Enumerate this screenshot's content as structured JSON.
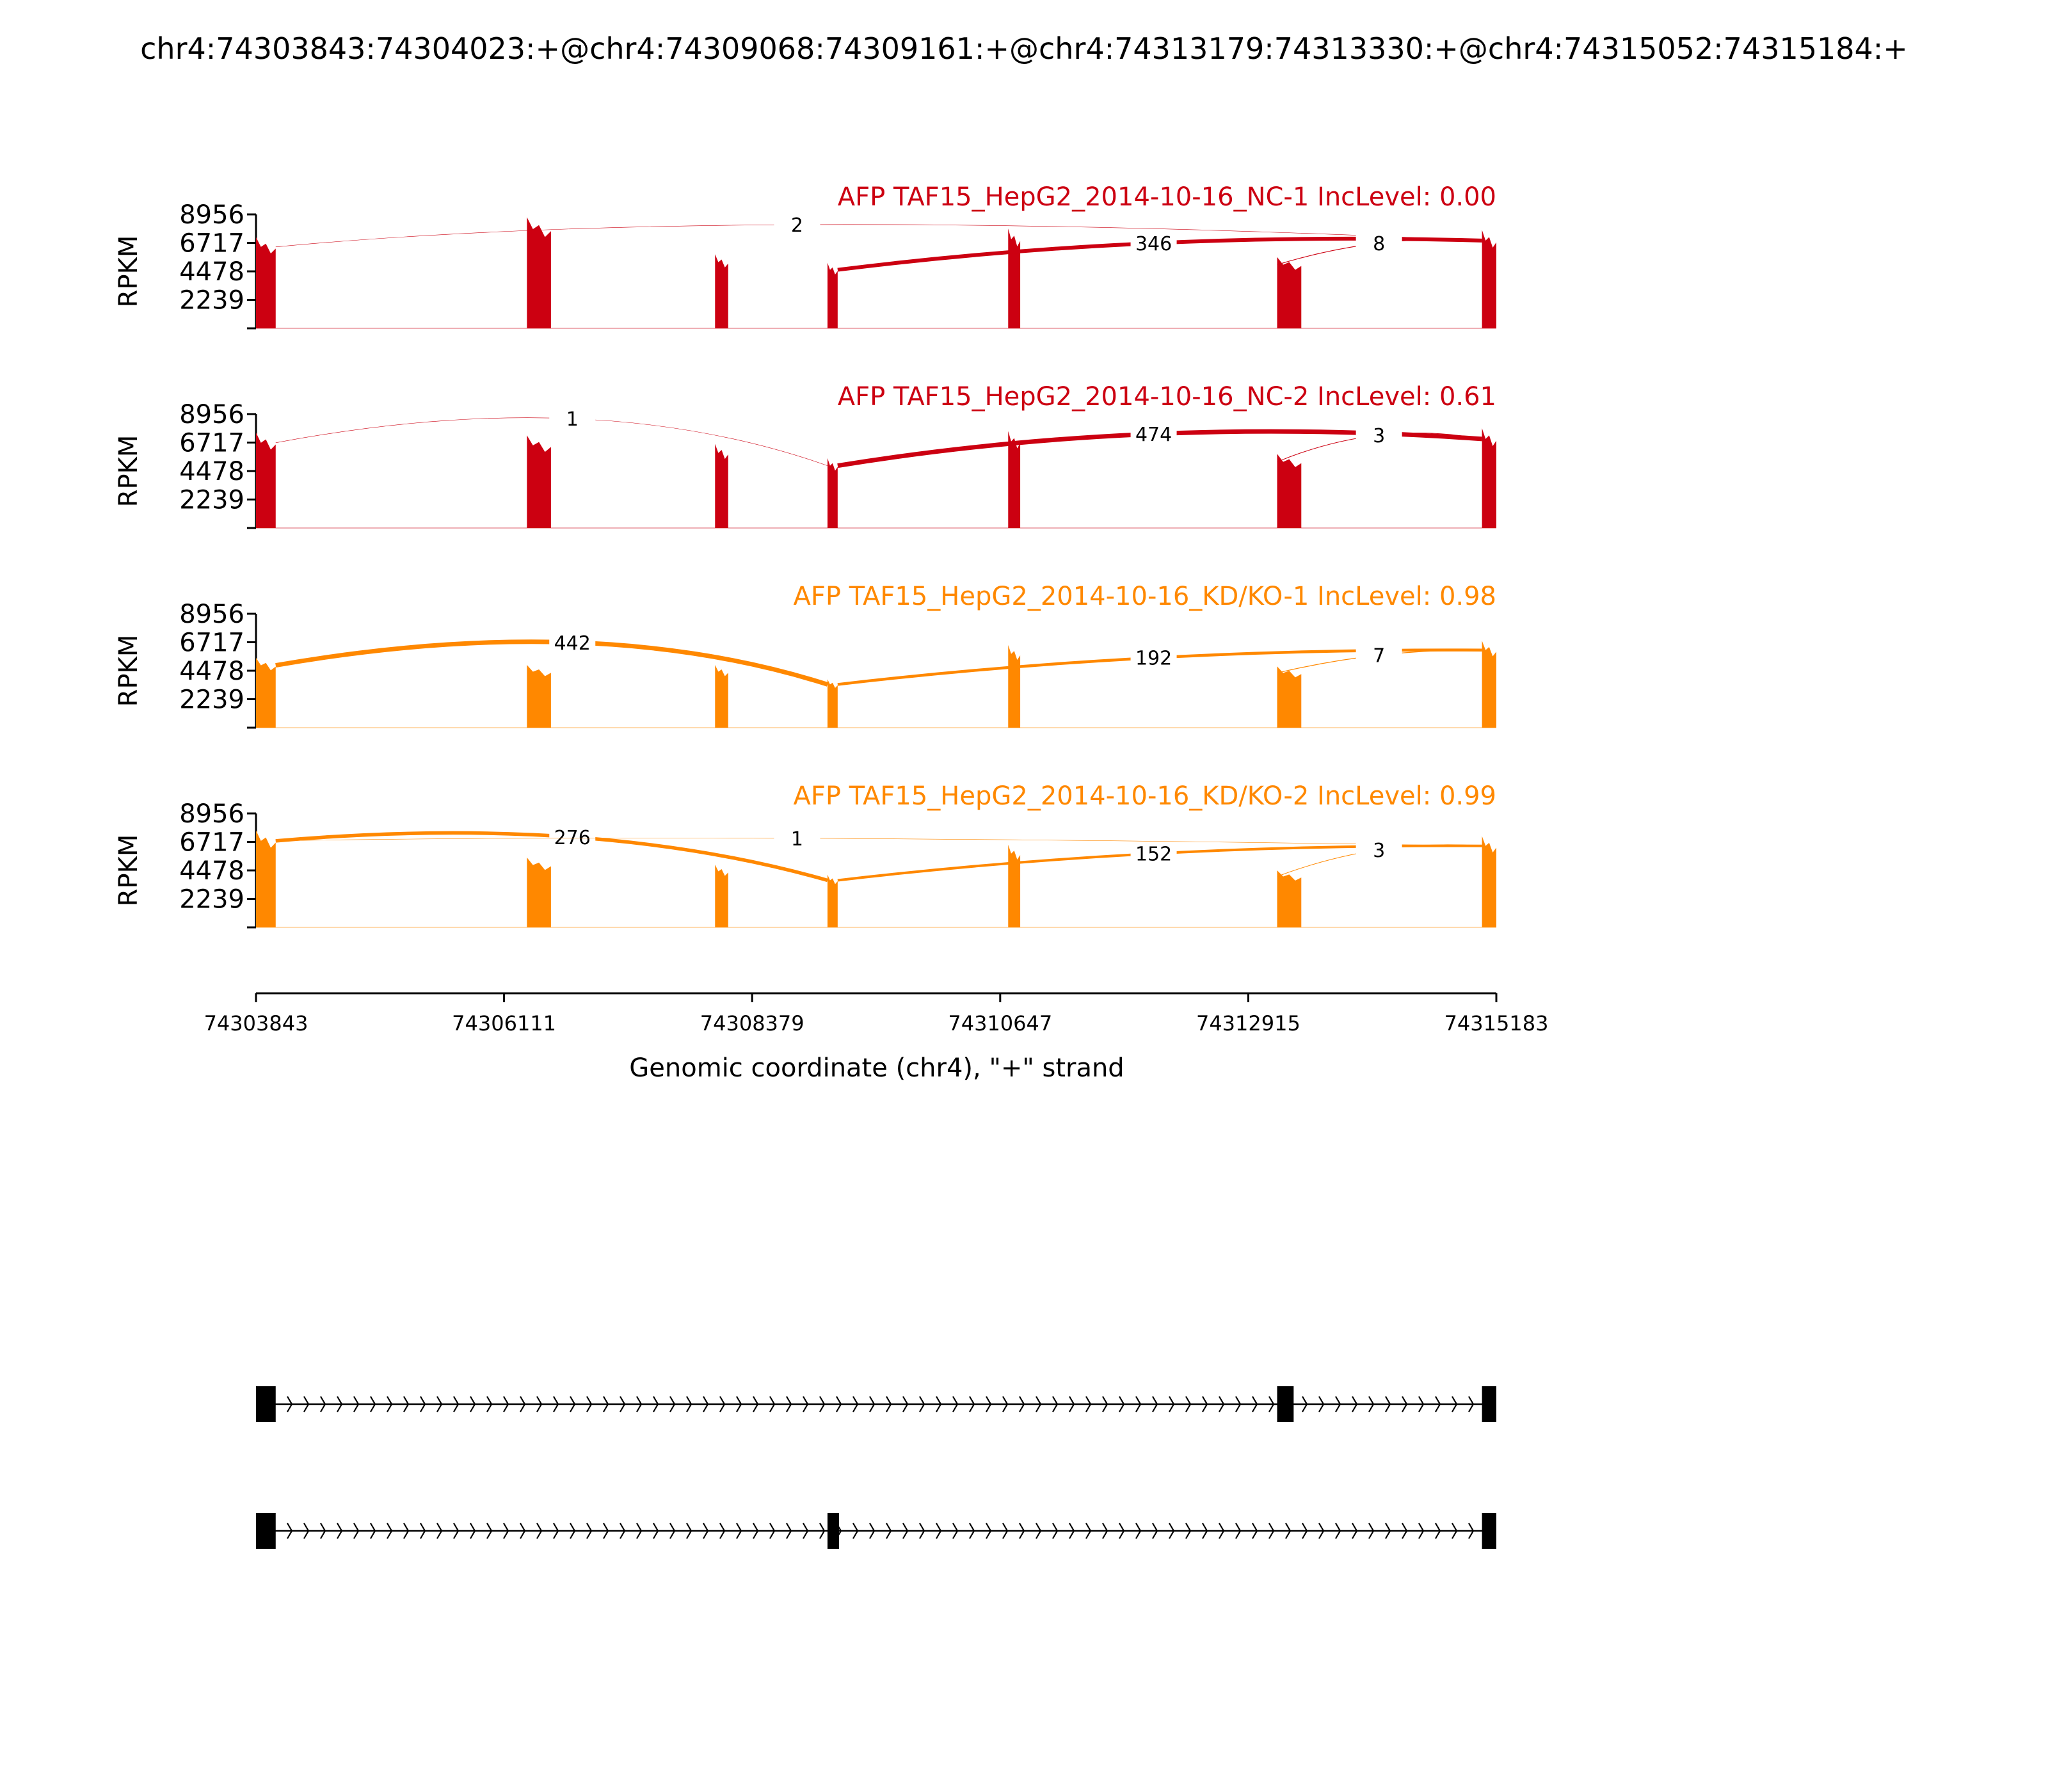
{
  "chart_data": {
    "type": "area",
    "subtype": "sashimi",
    "title": "chr4:74303843:74304023:+@chr4:74309068:74309161:+@chr4:74313179:74313330:+@chr4:74315052:74315184:+",
    "ylabel": "RPKM",
    "xlabel": "Genomic coordinate (chr4), \"+\" strand",
    "xlim": [
      74303843,
      74315183
    ],
    "ylim": [
      0,
      8956
    ],
    "x_ticks": [
      "74303843",
      "74306111",
      "74308379",
      "74310647",
      "74312915",
      "74315183"
    ],
    "y_ticks": [
      "8956",
      "6717",
      "4478",
      "2239"
    ],
    "exons": [
      {
        "start": 74303843,
        "end": 74304023
      },
      {
        "start": 74306320,
        "end": 74306540
      },
      {
        "start": 74308040,
        "end": 74308160
      },
      {
        "start": 74309068,
        "end": 74309161
      },
      {
        "start": 74310720,
        "end": 74310830
      },
      {
        "start": 74313179,
        "end": 74313400
      },
      {
        "start": 74315052,
        "end": 74315183
      }
    ],
    "panels": [
      {
        "label": "AFP TAF15_HepG2_2014-10-16_NC-1 IncLevel: 0.00",
        "color": "#cc0011",
        "coverage": [
          6400,
          7800,
          5200,
          4600,
          7000,
          5000,
          6900
        ],
        "junctions": [
          {
            "start": 74304023,
            "end": 74315052,
            "count": "2",
            "label_x": 74308790,
            "label_y": 8150,
            "width": 0.6
          },
          {
            "start": 74309161,
            "end": 74315052,
            "count": "346",
            "label_x": 74312050,
            "label_y": 6700,
            "width": 6
          },
          {
            "start": 74313179,
            "end": 74315052,
            "count": "8",
            "label_x": 74314110,
            "label_y": 6700,
            "width": 1.2
          }
        ]
      },
      {
        "label": "AFP TAF15_HepG2_2014-10-16_NC-2 IncLevel: 0.61",
        "color": "#cc0011",
        "coverage": [
          6700,
          6500,
          5900,
          4900,
          6800,
          5200,
          7000
        ],
        "junctions": [
          {
            "start": 74304023,
            "end": 74309068,
            "count": "1",
            "label_x": 74306735,
            "label_y": 8600,
            "width": 0.6
          },
          {
            "start": 74309161,
            "end": 74315052,
            "count": "474",
            "label_x": 74312050,
            "label_y": 7400,
            "width": 7
          },
          {
            "start": 74313179,
            "end": 74315052,
            "count": "3",
            "label_x": 74314110,
            "label_y": 7300,
            "width": 1
          }
        ]
      },
      {
        "label": "AFP TAF15_HepG2_2014-10-16_KD/KO-1 IncLevel: 0.98",
        "color": "#ff8800",
        "coverage": [
          4900,
          4400,
          4400,
          3400,
          5800,
          4300,
          6100
        ],
        "junctions": [
          {
            "start": 74304023,
            "end": 74309068,
            "count": "442",
            "label_x": 74306735,
            "label_y": 6700,
            "width": 7
          },
          {
            "start": 74309161,
            "end": 74315052,
            "count": "192",
            "label_x": 74312050,
            "label_y": 5500,
            "width": 4.5
          },
          {
            "start": 74313179,
            "end": 74315052,
            "count": "7",
            "label_x": 74314110,
            "label_y": 5700,
            "width": 1.2
          }
        ]
      },
      {
        "label": "AFP TAF15_HepG2_2014-10-16_KD/KO-2 IncLevel: 0.99",
        "color": "#ff8800",
        "coverage": [
          6800,
          4900,
          4400,
          3700,
          5800,
          4000,
          6400
        ],
        "junctions": [
          {
            "start": 74304023,
            "end": 74309068,
            "count": "276",
            "label_x": 74306735,
            "label_y": 7100,
            "width": 5.5
          },
          {
            "start": 74304023,
            "end": 74315052,
            "count": "1",
            "label_x": 74308790,
            "label_y": 7000,
            "width": 0.6
          },
          {
            "start": 74309161,
            "end": 74315052,
            "count": "152",
            "label_x": 74312050,
            "label_y": 5800,
            "width": 4
          },
          {
            "start": 74313179,
            "end": 74315052,
            "count": "3",
            "label_x": 74314110,
            "label_y": 6100,
            "width": 1
          }
        ]
      }
    ],
    "isoforms": [
      {
        "exons": [
          [
            74303843,
            74304023
          ],
          [
            74313179,
            74313330
          ],
          [
            74315052,
            74315183
          ]
        ]
      },
      {
        "exons": [
          [
            74303843,
            74304023
          ],
          [
            74309068,
            74309161
          ],
          [
            74315052,
            74315183
          ]
        ]
      }
    ]
  }
}
